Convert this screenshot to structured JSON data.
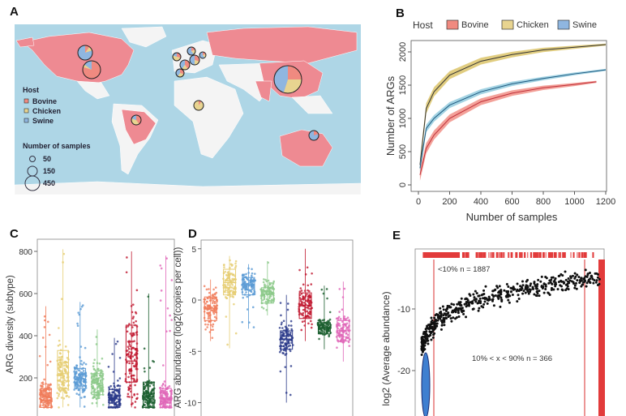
{
  "panels": {
    "a": "A",
    "b": "B",
    "c": "C",
    "d": "D",
    "e": "E"
  },
  "colors": {
    "bovine": "#f08a80",
    "chicken": "#e8d490",
    "swine": "#8fb6e0",
    "land": "#ee8a92",
    "ocean": "#aed6e6",
    "other_land": "#f4f4f4"
  },
  "chart_data": [
    {
      "type": "map",
      "panel": "A",
      "legend": {
        "host_title": "Host",
        "hosts": [
          "Bovine",
          "Chicken",
          "Swine"
        ],
        "size_title": "Number of samples",
        "sizes": [
          "50",
          "150",
          "450"
        ]
      },
      "pies": [
        {
          "region": "Canada",
          "shares": [
            0.1,
            0.1,
            0.8
          ]
        },
        {
          "region": "USA",
          "shares": [
            0.8,
            0.05,
            0.15
          ]
        },
        {
          "region": "Brazil",
          "shares": [
            0.4,
            0.4,
            0.2
          ]
        },
        {
          "region": "Cameroon",
          "shares": [
            0.1,
            0.9,
            0
          ]
        },
        {
          "region": "UK",
          "shares": [
            0.3,
            0.5,
            0.2
          ]
        },
        {
          "region": "France",
          "shares": [
            0.4,
            0.2,
            0.4
          ]
        },
        {
          "region": "Netherlands",
          "shares": [
            0.3,
            0.2,
            0.5
          ]
        },
        {
          "region": "Denmark",
          "shares": [
            0.2,
            0.2,
            0.6
          ]
        },
        {
          "region": "Spain",
          "shares": [
            0.3,
            0.3,
            0.4
          ]
        },
        {
          "region": "Germany",
          "shares": [
            0.2,
            0.2,
            0.6
          ]
        },
        {
          "region": "China",
          "shares": [
            0.25,
            0.3,
            0.45
          ]
        },
        {
          "region": "Australia",
          "shares": [
            0.2,
            0,
            0.8
          ]
        }
      ]
    },
    {
      "type": "line",
      "panel": "B",
      "legend_title": "Host",
      "xlabel": "Number of samples",
      "ylabel": "Number of ARGs",
      "xlim": [
        0,
        1200
      ],
      "ylim": [
        0,
        2200
      ],
      "xticks": [
        0,
        200,
        400,
        600,
        800,
        1000,
        1200
      ],
      "yticks": [
        0,
        500,
        1000,
        1500,
        2000
      ],
      "series": [
        {
          "name": "Bovine",
          "x": [
            10,
            50,
            100,
            200,
            400,
            600,
            800,
            1000,
            1140
          ],
          "y": [
            150,
            550,
            750,
            1000,
            1250,
            1380,
            1460,
            1510,
            1550
          ]
        },
        {
          "name": "Chicken",
          "x": [
            10,
            50,
            100,
            200,
            400,
            600,
            800,
            1000,
            1200
          ],
          "y": [
            300,
            1150,
            1400,
            1650,
            1860,
            1960,
            2030,
            2070,
            2110
          ]
        },
        {
          "name": "Swine",
          "x": [
            10,
            50,
            100,
            200,
            400,
            600,
            800,
            1000,
            1200
          ],
          "y": [
            250,
            850,
            1000,
            1200,
            1400,
            1520,
            1600,
            1670,
            1730
          ]
        }
      ]
    },
    {
      "type": "box",
      "panel": "C",
      "ylabel": "ARG diversity (subtype)",
      "yticks": [
        200,
        400,
        600,
        800
      ],
      "ylim": [
        60,
        830
      ],
      "groups": [
        {
          "min": 60,
          "q1": 60,
          "median": 110,
          "q3": 150,
          "max": 540
        },
        {
          "min": 60,
          "q1": 150,
          "median": 220,
          "q3": 330,
          "max": 810
        },
        {
          "min": 60,
          "q1": 150,
          "median": 195,
          "q3": 245,
          "max": 560
        },
        {
          "min": 60,
          "q1": 120,
          "median": 175,
          "q3": 220,
          "max": 430
        },
        {
          "min": 60,
          "q1": 60,
          "median": 100,
          "q3": 145,
          "max": 390
        },
        {
          "min": 60,
          "q1": 180,
          "median": 280,
          "q3": 450,
          "max": 800
        },
        {
          "min": 60,
          "q1": 60,
          "median": 110,
          "q3": 180,
          "max": 600
        },
        {
          "min": 60,
          "q1": 60,
          "median": 100,
          "q3": 150,
          "max": 780
        }
      ]
    },
    {
      "type": "box",
      "panel": "D",
      "ylabel": "ARG abundance (log2(copies per cell))",
      "yticks": [
        -10,
        -5,
        0,
        5
      ],
      "ylim": [
        -10.5,
        5.5
      ],
      "groups": [
        {
          "min": -4,
          "q1": -2,
          "median": -0.8,
          "q3": 0.3,
          "max": 2
        },
        {
          "min": -4.7,
          "q1": 0.5,
          "median": 1.7,
          "q3": 3,
          "max": 4.3
        },
        {
          "min": -2.8,
          "q1": 0.5,
          "median": 1.5,
          "q3": 2.2,
          "max": 3.5
        },
        {
          "min": -1.5,
          "q1": -0.3,
          "median": 0.6,
          "q3": 1.2,
          "max": 3.8
        },
        {
          "min": -10,
          "q1": -4.8,
          "median": -3.8,
          "q3": -3,
          "max": 0.5
        },
        {
          "min": -4,
          "q1": -1.8,
          "median": -0.5,
          "q3": 0.7,
          "max": 5
        },
        {
          "min": -4.8,
          "q1": -3.3,
          "median": -2.7,
          "q3": -2.2,
          "max": 1.4
        },
        {
          "min": -6,
          "q1": -4,
          "median": -3,
          "q3": -2,
          "max": 1.8
        }
      ]
    },
    {
      "type": "scatter",
      "panel": "E",
      "ylabel": "log2 (Average abundance)",
      "yticks": [
        -10,
        -20
      ],
      "ylim": [
        -24,
        -2
      ],
      "annotations": [
        "<10% n = 1887",
        "10% < x < 90% n = 366"
      ]
    }
  ],
  "group_colors": [
    "#f07c5a",
    "#e6cd72",
    "#5b9bd5",
    "#8cc98a",
    "#2b3a8a",
    "#c0182f",
    "#1a5e2e",
    "#e066b8"
  ]
}
